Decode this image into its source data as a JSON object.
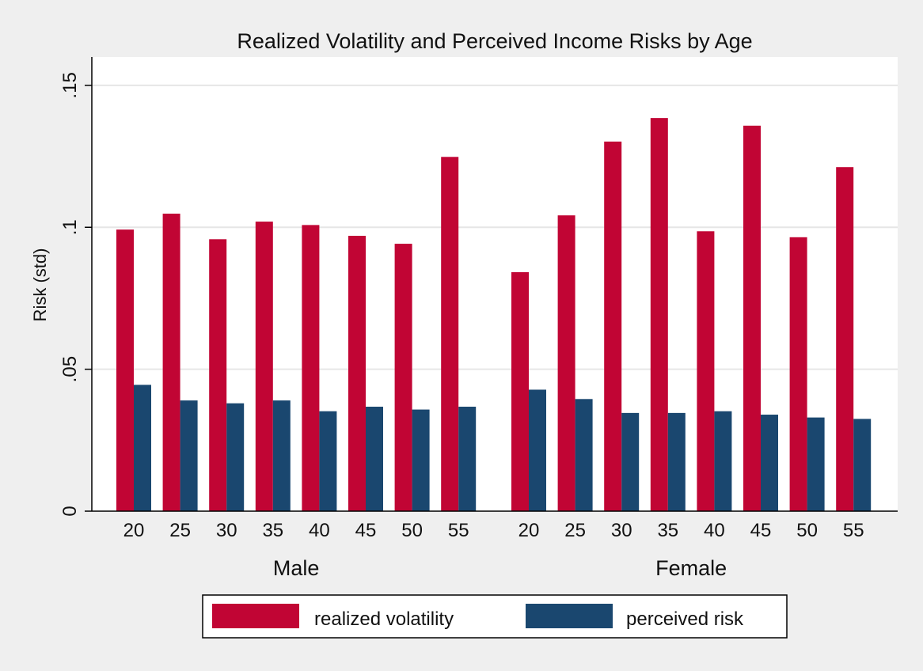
{
  "chart_data": {
    "type": "bar",
    "title": "Realized Volatility and Perceived Income Risks by Age",
    "ylabel": "Risk (std)",
    "ylim": [
      0,
      0.16
    ],
    "yticks": [
      {
        "value": 0,
        "label": "0"
      },
      {
        "value": 0.05,
        "label": ".05"
      },
      {
        "value": 0.1,
        "label": ".1"
      },
      {
        "value": 0.15,
        "label": ".15"
      }
    ],
    "grid": true,
    "legend_position": "bottom",
    "groups": [
      {
        "name": "Male",
        "categories": [
          "20",
          "25",
          "30",
          "35",
          "40",
          "45",
          "50",
          "55"
        ],
        "series": [
          {
            "name": "realized volatility",
            "color": "#c10534",
            "values": [
              0.0992,
              0.1048,
              0.0958,
              0.102,
              0.1008,
              0.097,
              0.0942,
              0.1248
            ]
          },
          {
            "name": "perceived risk",
            "color": "#1a476f",
            "values": [
              0.0445,
              0.039,
              0.038,
              0.039,
              0.0352,
              0.0368,
              0.0358,
              0.0368
            ]
          }
        ]
      },
      {
        "name": "Female",
        "categories": [
          "20",
          "25",
          "30",
          "35",
          "40",
          "45",
          "50",
          "55"
        ],
        "series": [
          {
            "name": "realized volatility",
            "color": "#c10534",
            "values": [
              0.0842,
              0.1042,
              0.1302,
              0.1385,
              0.0986,
              0.1358,
              0.0965,
              0.1212
            ]
          },
          {
            "name": "perceived risk",
            "color": "#1a476f",
            "values": [
              0.0428,
              0.0395,
              0.0346,
              0.0346,
              0.0352,
              0.034,
              0.033,
              0.0325
            ]
          }
        ]
      }
    ],
    "legend": [
      {
        "label": "realized volatility",
        "color": "#c10534"
      },
      {
        "label": "perceived risk",
        "color": "#1a476f"
      }
    ]
  }
}
